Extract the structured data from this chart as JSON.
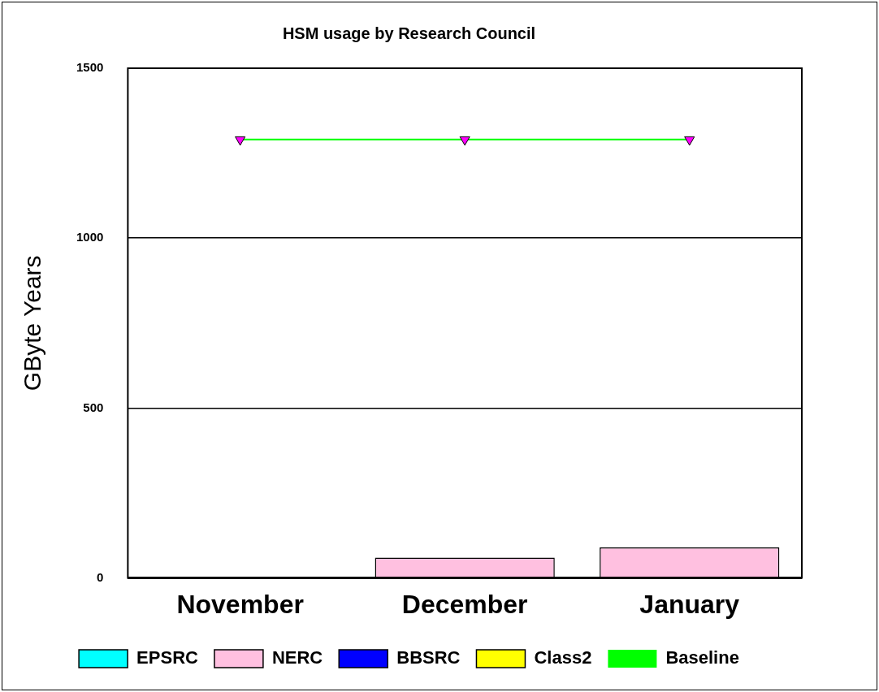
{
  "chart_data": {
    "type": "bar",
    "title": "HSM usage by Research Council",
    "ylabel": "GByte Years",
    "categories": [
      "November",
      "December",
      "January"
    ],
    "stacked": true,
    "ylim": [
      0,
      1500
    ],
    "yticks": [
      0,
      500,
      1000,
      1500
    ],
    "grid": "y",
    "legend": "bottom",
    "series": [
      {
        "name": "EPSRC",
        "color": "#00ffff",
        "values": [
          0,
          0,
          0
        ]
      },
      {
        "name": "NERC",
        "color": "#ffc0e0",
        "values": [
          0,
          60,
          90
        ]
      },
      {
        "name": "BBSRC",
        "color": "#0000ff",
        "values": [
          0,
          0,
          0
        ]
      },
      {
        "name": "Class2",
        "color": "#ffff00",
        "values": [
          0,
          0,
          0
        ]
      },
      {
        "name": "Baseline",
        "type": "line",
        "color": "#00ff00",
        "marker": "triangle",
        "values": [
          1290,
          1290,
          1290
        ]
      }
    ]
  }
}
